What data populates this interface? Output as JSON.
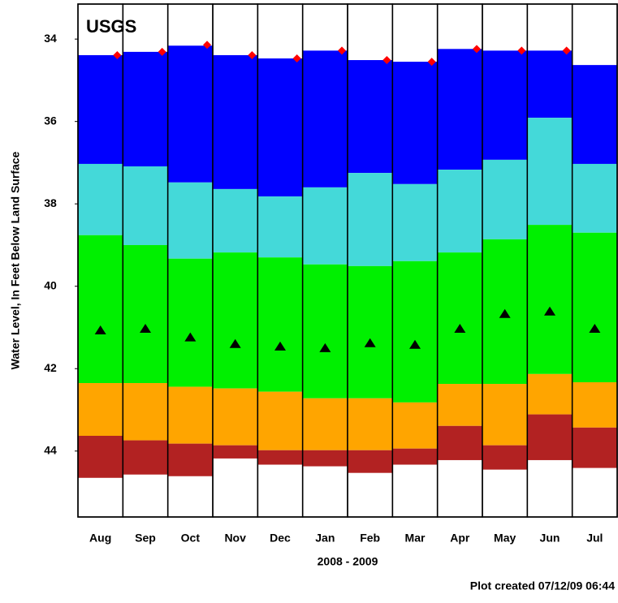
{
  "chart_data": {
    "type": "percentile-bands",
    "logo": "USGS",
    "y_label": "Water Level, In Feet Below Land Surface",
    "x_label": "2008 - 2009",
    "footer": "Plot created 07/12/09 06:44",
    "categories": [
      "Aug",
      "Sep",
      "Oct",
      "Nov",
      "Dec",
      "Jan",
      "Feb",
      "Mar",
      "Apr",
      "May",
      "Jun",
      "Jul"
    ],
    "ylim": [
      33.15,
      45.6
    ],
    "y_inverted": true,
    "yticks": [
      34,
      36,
      38,
      40,
      42,
      44
    ],
    "band_colors": [
      "#0000ff",
      "#44d9d9",
      "#00f000",
      "#ffa500",
      "#b22222"
    ],
    "levels": [
      [
        34.39,
        34.31,
        34.16,
        34.39,
        34.47,
        34.28,
        34.51,
        34.55,
        34.24,
        34.28,
        34.28,
        34.63
      ],
      [
        37.03,
        37.09,
        37.48,
        37.64,
        37.82,
        37.6,
        37.25,
        37.52,
        37.17,
        36.93,
        35.91,
        37.03
      ],
      [
        38.76,
        39.0,
        39.33,
        39.18,
        39.3,
        39.47,
        39.51,
        39.39,
        39.18,
        38.86,
        38.51,
        38.7
      ],
      [
        42.35,
        42.35,
        42.44,
        42.48,
        42.56,
        42.72,
        42.72,
        42.82,
        42.37,
        42.37,
        42.13,
        42.33
      ],
      [
        43.63,
        43.74,
        43.82,
        43.86,
        43.98,
        43.98,
        43.98,
        43.94,
        43.39,
        43.86,
        43.11,
        43.43
      ],
      [
        44.65,
        44.57,
        44.61,
        44.18,
        44.33,
        44.37,
        44.53,
        44.33,
        44.22,
        44.45,
        44.22,
        44.41
      ]
    ],
    "diamond_color": "#ff0000",
    "diamonds": [
      34.39,
      34.31,
      34.14,
      34.39,
      34.47,
      34.28,
      34.51,
      34.55,
      34.24,
      34.28,
      34.28,
      null
    ],
    "triangle_color": "#000000",
    "triangles": [
      41.07,
      41.03,
      41.24,
      41.4,
      41.46,
      41.5,
      41.38,
      41.42,
      41.03,
      40.67,
      40.61,
      41.03
    ]
  }
}
